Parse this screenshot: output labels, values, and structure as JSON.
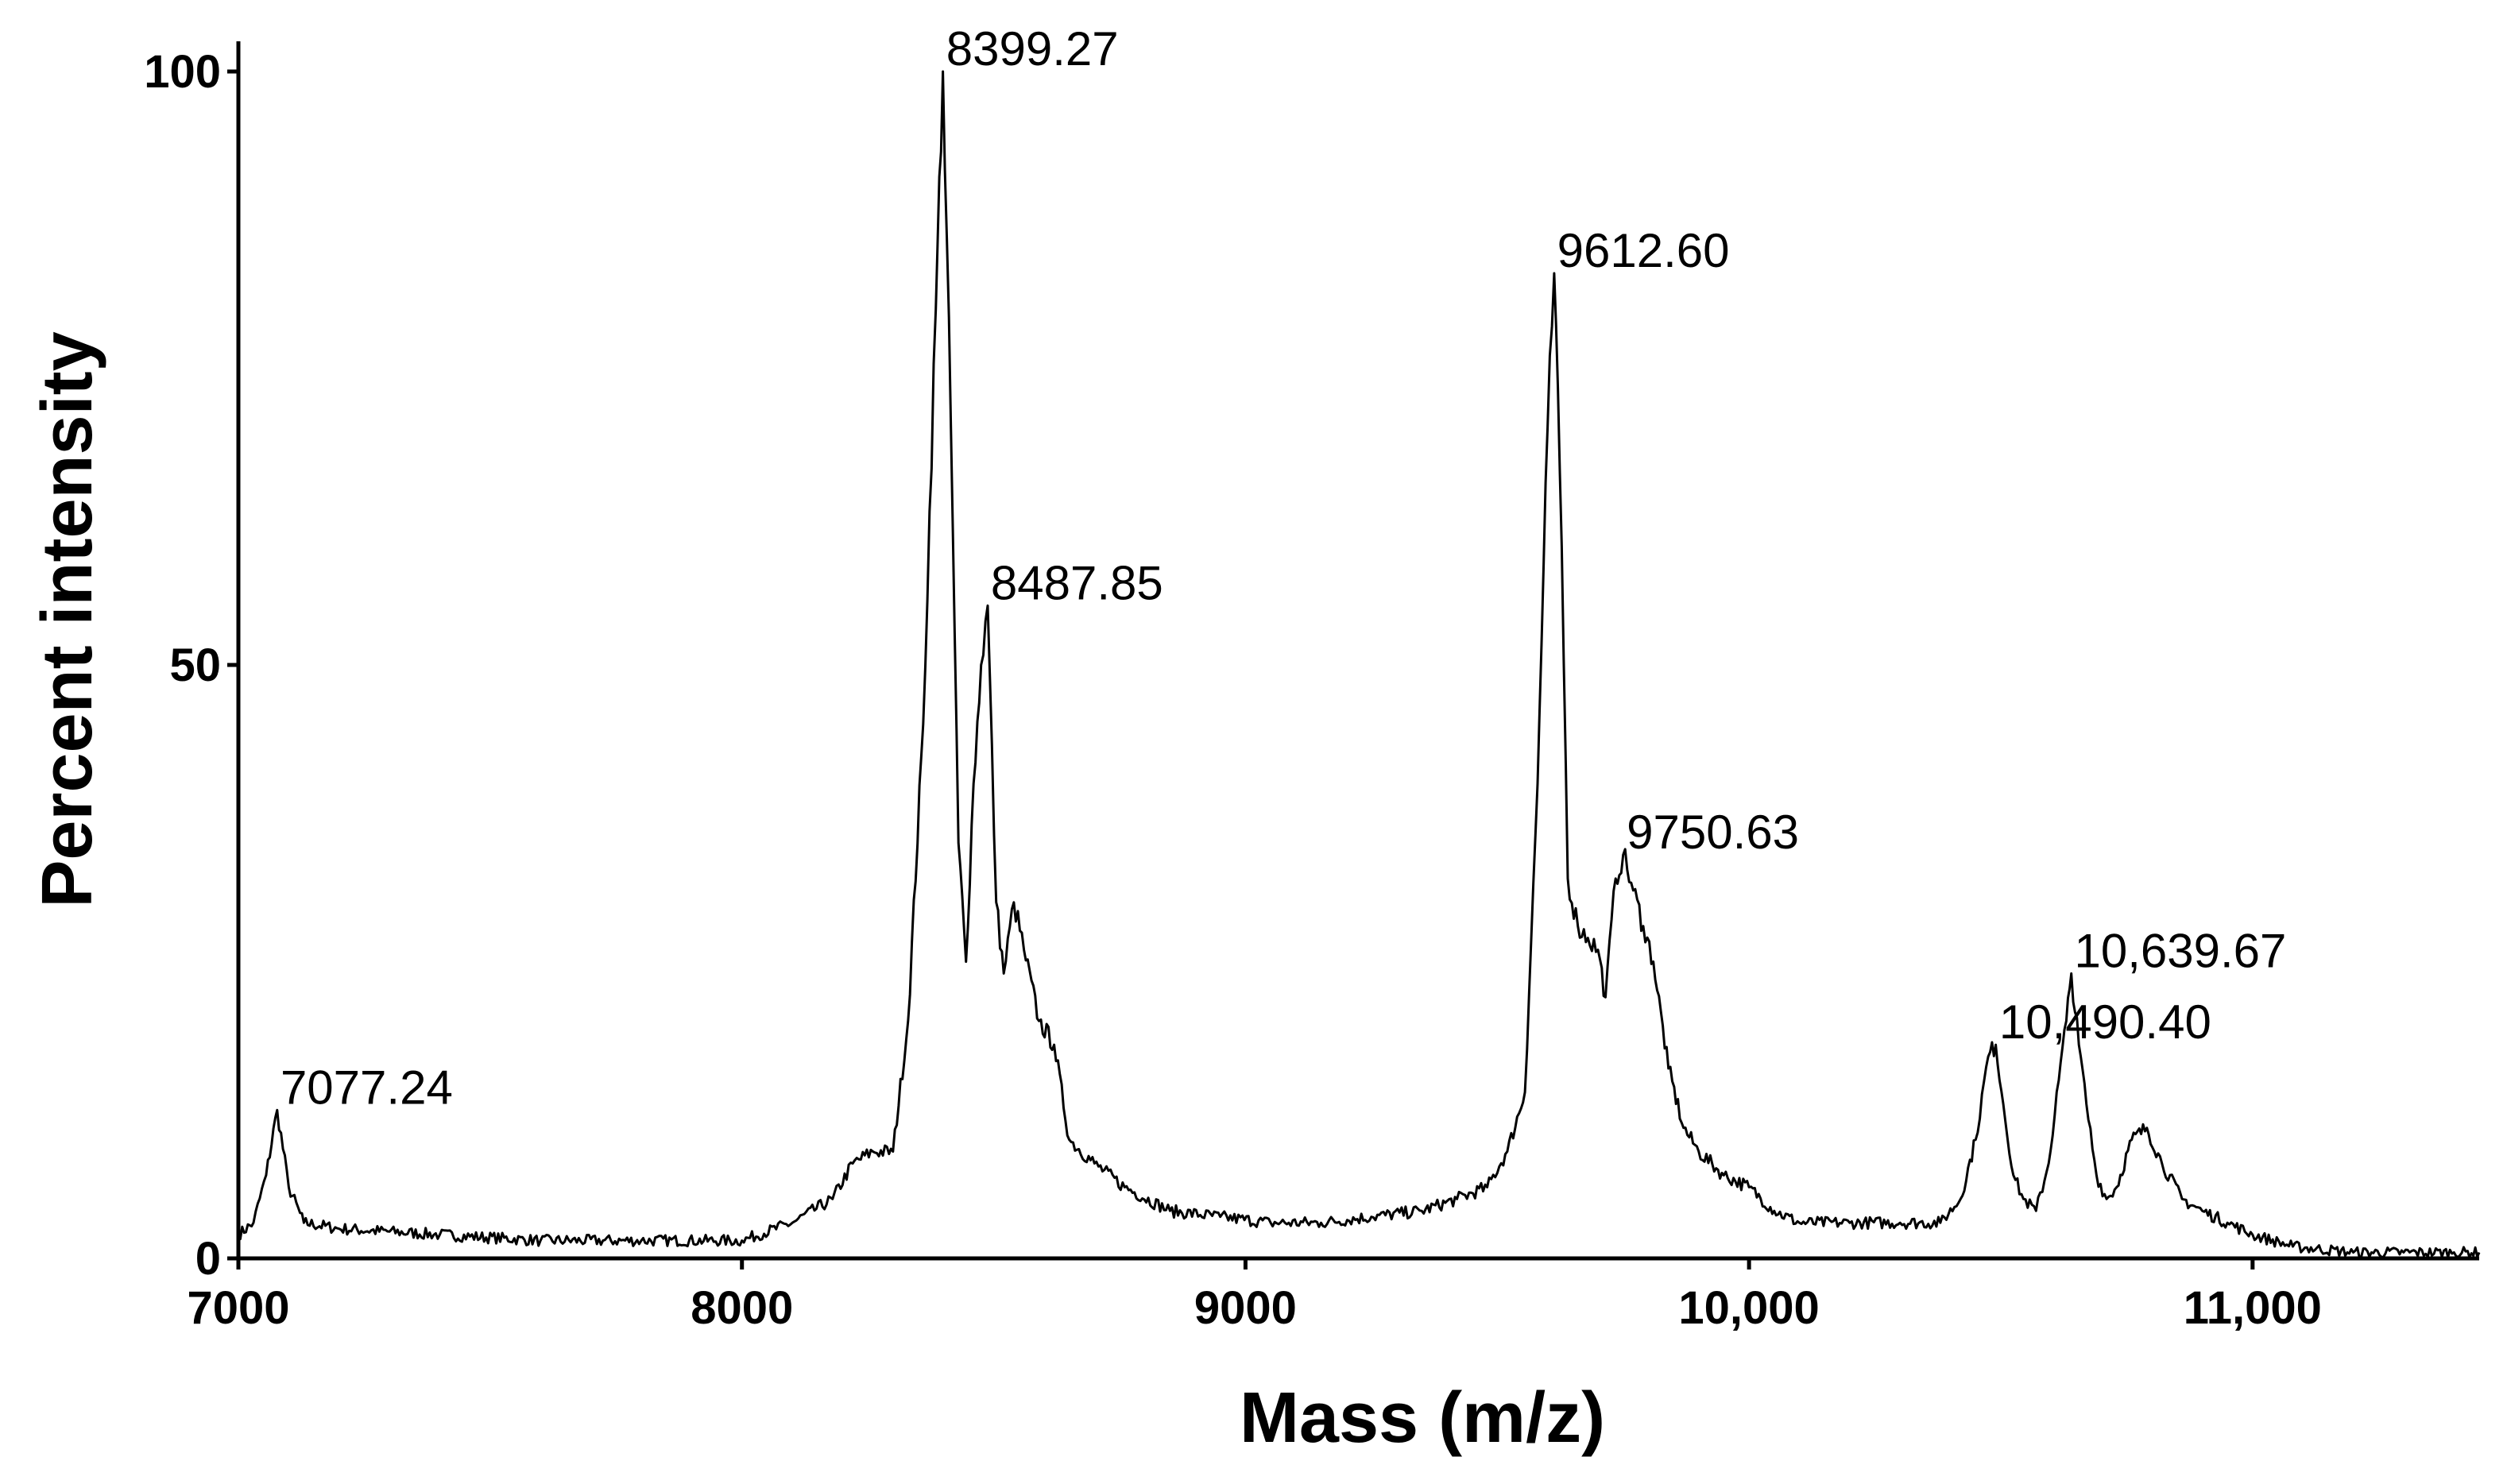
{
  "chart_data": {
    "type": "line",
    "title": "",
    "xlabel": "Mass (m/z)",
    "ylabel": "Percent intensity",
    "xlim": [
      7000,
      11450
    ],
    "ylim": [
      0,
      100
    ],
    "grid": false,
    "legend": "none",
    "line_color": "#000000",
    "x_ticks": [
      {
        "value": 7000,
        "label": "7000"
      },
      {
        "value": 8000,
        "label": "8000"
      },
      {
        "value": 9000,
        "label": "9000"
      },
      {
        "value": 10000,
        "label": "10,000"
      },
      {
        "value": 11000,
        "label": "11,000"
      }
    ],
    "y_ticks": [
      {
        "value": 0,
        "label": "0"
      },
      {
        "value": 50,
        "label": "50"
      },
      {
        "value": 100,
        "label": "100"
      }
    ],
    "peaks": [
      {
        "mass": 7077.24,
        "intensity": 12.5,
        "label": "7077.24"
      },
      {
        "mass": 8399.27,
        "intensity": 100,
        "label": "8399.27"
      },
      {
        "mass": 8487.85,
        "intensity": 55,
        "label": "8487.85"
      },
      {
        "mass": 9612.6,
        "intensity": 83,
        "label": "9612.60"
      },
      {
        "mass": 9750.63,
        "intensity": 34,
        "label": "9750.63"
      },
      {
        "mass": 10490.4,
        "intensity": 18,
        "label": "10,490.40"
      },
      {
        "mass": 10639.67,
        "intensity": 24,
        "label": "10,639.67"
      }
    ],
    "series": [
      {
        "x": [
          7000,
          7030,
          7055,
          7077,
          7100,
          7130,
          7200,
          7400,
          7600,
          7800,
          8000,
          8100,
          8180,
          8220,
          8260,
          8300,
          8330,
          8360,
          8385,
          8399,
          8415,
          8430,
          8445,
          8460,
          8475,
          8488,
          8505,
          8520,
          8540,
          8560,
          8590,
          8620,
          8650,
          8700,
          8760,
          8850,
          8950,
          9050,
          9150,
          9250,
          9350,
          9420,
          9480,
          9520,
          9555,
          9580,
          9600,
          9613,
          9628,
          9640,
          9660,
          9680,
          9700,
          9715,
          9735,
          9750,
          9770,
          9790,
          9810,
          9840,
          9870,
          9900,
          9950,
          10000,
          10050,
          10100,
          10200,
          10300,
          10380,
          10420,
          10450,
          10475,
          10490,
          10505,
          10525,
          10545,
          10570,
          10595,
          10615,
          10630,
          10640,
          10655,
          10670,
          10690,
          10710,
          10730,
          10760,
          10790,
          10820,
          10860,
          10900,
          10950,
          11000,
          11080,
          11200,
          11300,
          11400,
          11450
        ],
        "y": [
          2,
          3,
          7,
          12.5,
          6,
          3,
          2.5,
          2,
          1.5,
          1.5,
          1.5,
          3,
          5,
          8,
          9,
          9,
          20,
          45,
          80,
          100,
          70,
          35,
          25,
          40,
          50,
          55,
          30,
          24,
          30,
          26,
          20,
          18,
          10,
          8,
          6,
          4,
          3.5,
          3,
          3,
          3.5,
          4,
          5,
          6,
          9,
          14,
          40,
          70,
          83,
          60,
          32,
          28,
          27,
          26,
          22,
          32,
          34,
          31,
          28,
          25,
          16,
          11,
          9,
          7,
          6,
          4,
          3,
          3,
          3,
          3,
          5,
          10,
          17,
          18,
          13,
          7,
          5,
          4,
          8,
          15,
          20,
          24,
          18,
          13,
          7,
          5,
          6,
          10,
          11,
          8,
          5,
          4,
          3,
          2,
          1,
          0.5,
          0.5,
          0.5,
          0.5
        ]
      }
    ]
  }
}
